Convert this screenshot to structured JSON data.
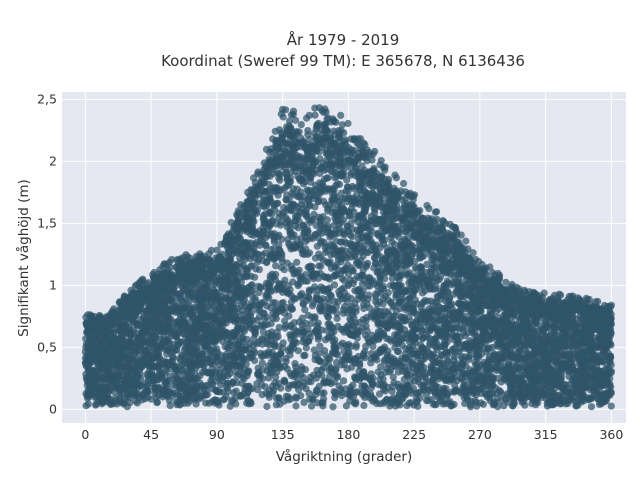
{
  "chart_data": {
    "type": "scatter",
    "title_lines": [
      "År 1979 - 2019",
      "Koordinat (Sweref 99 TM): E 365678, N 6136436"
    ],
    "xlabel": "Vågriktning (grader)",
    "ylabel": "Signifikant våghöjd (m)",
    "xlim": [
      -16,
      370
    ],
    "ylim": [
      -0.11,
      2.56
    ],
    "x_ticks": [
      0,
      45,
      90,
      135,
      180,
      225,
      270,
      315,
      360
    ],
    "x_tick_labels": [
      "0",
      "45",
      "90",
      "135",
      "180",
      "225",
      "270",
      "315",
      "360"
    ],
    "y_ticks": [
      0,
      0.5,
      1,
      1.5,
      2,
      2.5
    ],
    "y_tick_labels": [
      "0",
      "0,5",
      "1",
      "1,5",
      "2",
      "2,5"
    ],
    "grid": true,
    "legend": "none",
    "colors": {
      "marker": "#2f5469",
      "plot_background": "#e5e8f0",
      "grid": "#ffffff"
    },
    "density_envelope": {
      "description_of_points": "dense cloud of wave observations; upper envelope of maximum height per direction",
      "direction_deg": [
        0,
        15,
        30,
        45,
        60,
        75,
        90,
        105,
        120,
        135,
        150,
        160,
        180,
        200,
        225,
        250,
        270,
        290,
        315,
        340,
        360
      ],
      "max_height_m": [
        0.75,
        0.75,
        0.95,
        1.08,
        1.2,
        1.25,
        1.27,
        1.6,
        1.95,
        2.42,
        2.3,
        2.43,
        2.3,
        2.0,
        1.7,
        1.48,
        1.2,
        1.0,
        0.92,
        0.9,
        0.82
      ],
      "min_height_m": 0.02
    },
    "sample_points": [
      {
        "x": 135,
        "y": 2.42
      },
      {
        "x": 157,
        "y": 2.43
      },
      {
        "x": 170,
        "y": 2.33
      },
      {
        "x": 198,
        "y": 2.08
      },
      {
        "x": 40,
        "y": 0.92
      },
      {
        "x": 48,
        "y": 1.07
      },
      {
        "x": 280,
        "y": 0.98
      },
      {
        "x": 337,
        "y": 0.9
      },
      {
        "x": 360,
        "y": 0.84
      }
    ]
  }
}
